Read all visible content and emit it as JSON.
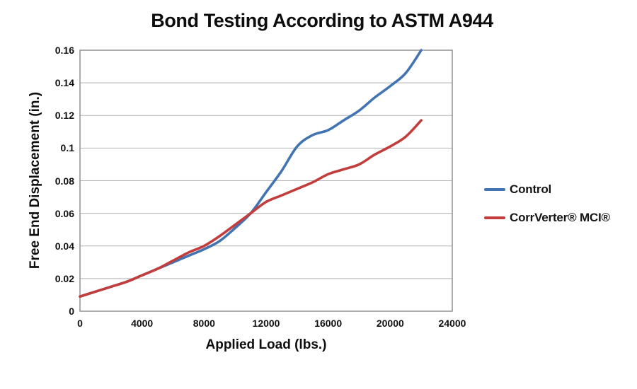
{
  "title": "Bond Testing According to ASTM A944",
  "chart_data": {
    "type": "line",
    "title": "Bond Testing According to ASTM A944",
    "xlabel": "Applied Load (lbs.)",
    "ylabel": "Free End Displacement (in.)",
    "xlim": [
      0,
      24000
    ],
    "ylim": [
      0,
      0.16
    ],
    "x_ticks": [
      0,
      4000,
      8000,
      12000,
      16000,
      20000,
      24000
    ],
    "x_tick_labels": [
      "0",
      "4000",
      "8000",
      "12000",
      "16000",
      "20000",
      "24000"
    ],
    "y_ticks": [
      0,
      0.02,
      0.04,
      0.06,
      0.08,
      0.1,
      0.12,
      0.14,
      0.16
    ],
    "y_tick_labels": [
      "0",
      "0.02",
      "0.04",
      "0.06",
      "0.08",
      "0.1",
      "0.12",
      "0.14",
      "0.16"
    ],
    "grid": "horizontal",
    "legend_position": "right",
    "x": [
      0,
      1000,
      2000,
      3000,
      4000,
      5000,
      6000,
      7000,
      8000,
      9000,
      10000,
      11000,
      12000,
      13000,
      14000,
      15000,
      16000,
      17000,
      18000,
      19000,
      20000,
      21000,
      22000
    ],
    "series": [
      {
        "name": "Control",
        "color": "#4273B2",
        "values": [
          0.009,
          0.012,
          0.015,
          0.018,
          0.022,
          0.026,
          0.03,
          0.034,
          0.038,
          0.043,
          0.051,
          0.06,
          0.073,
          0.086,
          0.101,
          0.108,
          0.111,
          0.117,
          0.123,
          0.131,
          0.138,
          0.146,
          0.16
        ]
      },
      {
        "name": "CorrVerter® MCI®",
        "color": "#C23D3B",
        "values": [
          0.009,
          0.012,
          0.015,
          0.018,
          0.022,
          0.026,
          0.031,
          0.036,
          0.04,
          0.046,
          0.053,
          0.06,
          0.067,
          0.071,
          0.075,
          0.079,
          0.084,
          0.087,
          0.09,
          0.096,
          0.101,
          0.107,
          0.117
        ]
      }
    ],
    "colors": {
      "gridline": "#b2b2b2",
      "plot_border": "#7f7f7f",
      "text": "#111111"
    }
  }
}
